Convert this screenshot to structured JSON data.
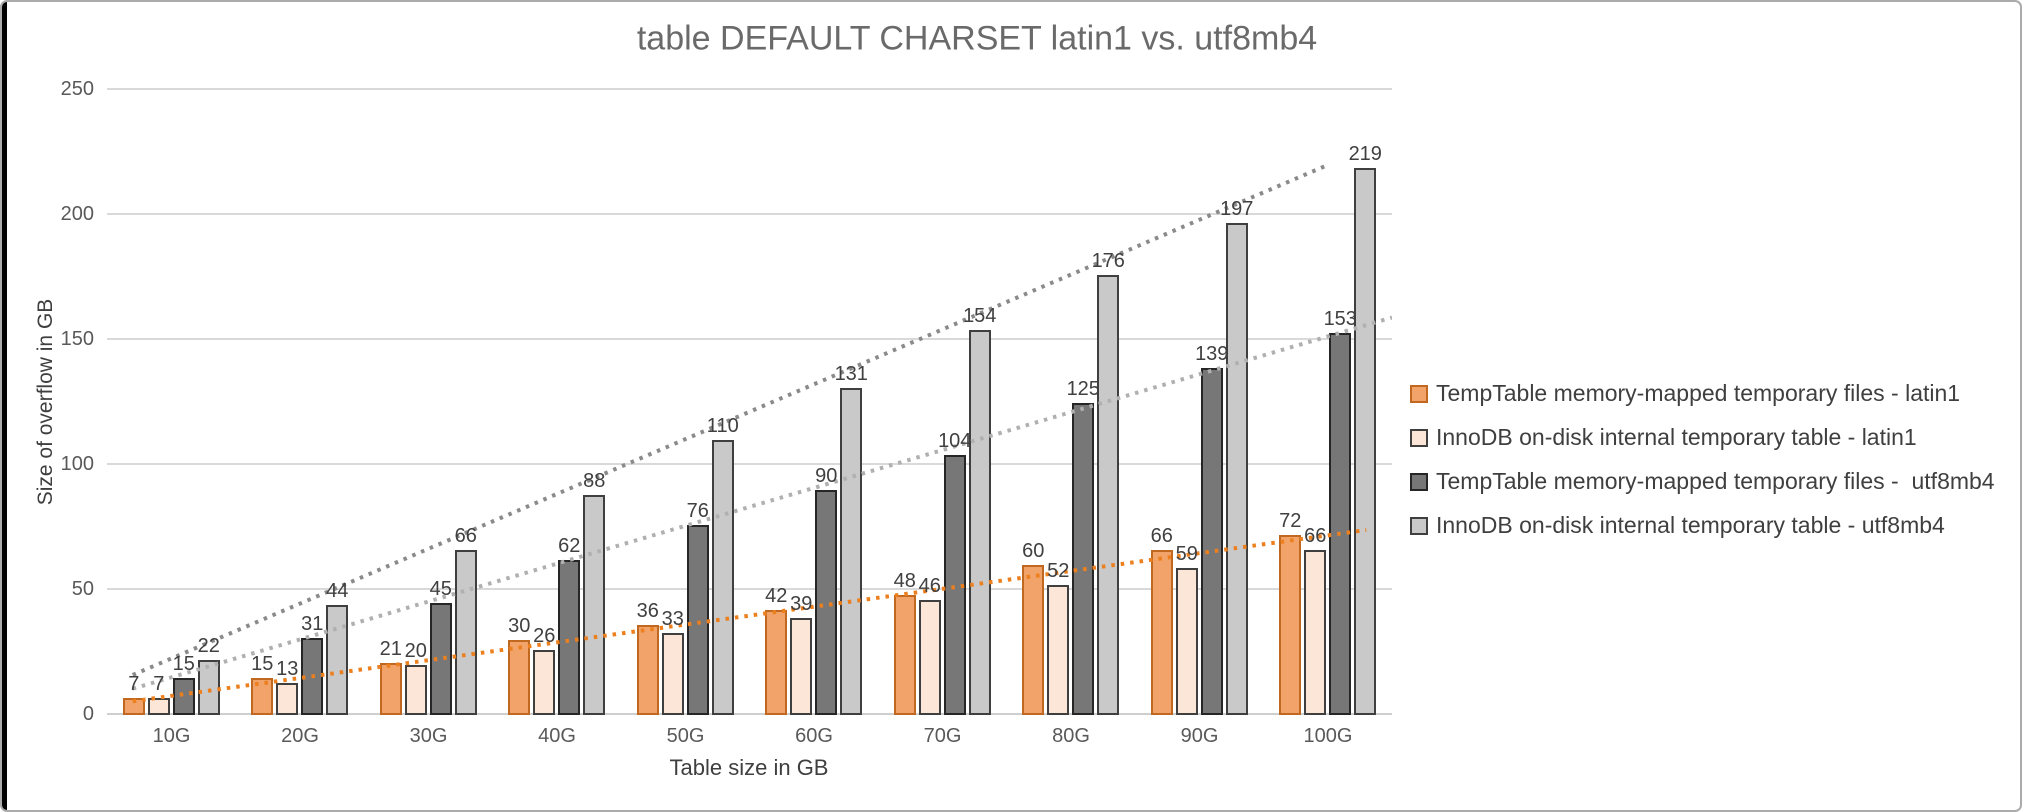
{
  "window": {
    "background": "#FFFFFF",
    "border_color": "#ABABAB",
    "left_edge_color": "#000000"
  },
  "chart_data": {
    "type": "bar",
    "title": "table DEFAULT CHARSET latin1 vs. utf8mb4",
    "xlabel": "Table size in GB",
    "ylabel": "Size of overflow in GB",
    "ylim": [
      0,
      250
    ],
    "yticks": [
      0,
      50,
      100,
      150,
      200,
      250
    ],
    "grid": true,
    "legend_position": "right",
    "categories": [
      "10G",
      "20G",
      "30G",
      "40G",
      "50G",
      "60G",
      "70G",
      "80G",
      "90G",
      "100G"
    ],
    "series": [
      {
        "name": "TempTable memory-mapped temporary files - latin1",
        "fill": "#F1A369",
        "border": "#C06820",
        "values": [
          7,
          15,
          21,
          30,
          36,
          42,
          48,
          60,
          66,
          72
        ]
      },
      {
        "name": "InnoDB on-disk internal temporary table - latin1",
        "fill": "#FBE6D7",
        "border": "#3F3F3F",
        "values": [
          7,
          13,
          20,
          26,
          33,
          39,
          46,
          52,
          59,
          66
        ]
      },
      {
        "name": "TempTable memory-mapped temporary files -  utf8mb4",
        "fill": "#777777",
        "border": "#262626",
        "values": [
          15,
          31,
          45,
          62,
          76,
          90,
          104,
          125,
          139,
          153
        ]
      },
      {
        "name": "InnoDB on-disk internal temporary table - utf8mb4",
        "fill": "#C9C9C9",
        "border": "#3F3F3F",
        "values": [
          22,
          44,
          66,
          88,
          110,
          131,
          154,
          176,
          197,
          219
        ]
      }
    ],
    "trendlines": [
      {
        "for_series": 0,
        "style": "dotted",
        "color": "#EC7F1E",
        "start_index": -0.3,
        "start_value": 5.5,
        "end_index": 9.3,
        "end_value": 74
      },
      {
        "for_series": 2,
        "style": "dotted",
        "color": "#B0B0B0",
        "start_index": -0.3,
        "start_value": 10.5,
        "end_index": 9.5,
        "end_value": 159
      },
      {
        "for_series": 3,
        "style": "dotted",
        "color": "#8A8A8A",
        "start_index": -0.3,
        "start_value": 16,
        "end_index": 9.0,
        "end_value": 220
      }
    ]
  }
}
